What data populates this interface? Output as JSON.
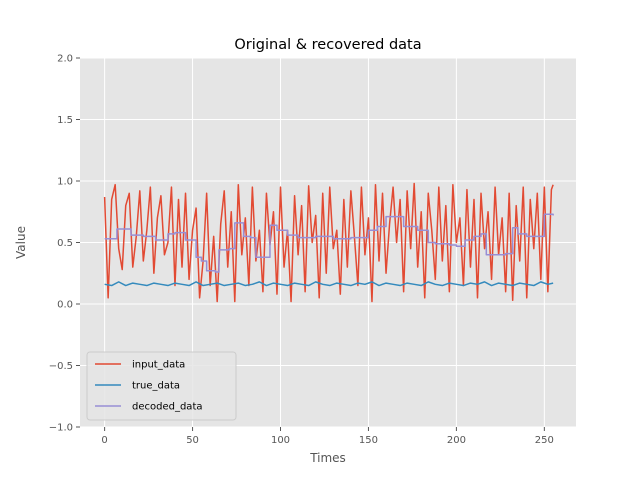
{
  "chart_data": {
    "type": "line",
    "title": "Original & recovered data",
    "xlabel": "Times",
    "ylabel": "Value",
    "xlim": [
      -14,
      268
    ],
    "ylim": [
      -1.0,
      2.0
    ],
    "xticks": [
      0,
      50,
      100,
      150,
      200,
      250
    ],
    "xtick_labels": [
      "0",
      "50",
      "100",
      "150",
      "200",
      "250"
    ],
    "yticks": [
      -1.0,
      -0.5,
      0.0,
      0.5,
      1.0,
      1.5,
      2.0
    ],
    "ytick_labels": [
      "−1.0",
      "−0.5",
      "0.0",
      "0.5",
      "1.0",
      "1.5",
      "2.0"
    ],
    "grid": true,
    "legend_position": "lower-left",
    "series": [
      {
        "name": "input_data",
        "color": "#E24A33",
        "x": [
          0,
          2,
          4,
          6,
          8,
          10,
          12,
          14,
          16,
          18,
          20,
          22,
          24,
          26,
          28,
          30,
          32,
          34,
          36,
          38,
          40,
          42,
          44,
          46,
          48,
          50,
          52,
          54,
          56,
          58,
          60,
          62,
          64,
          66,
          68,
          70,
          72,
          74,
          76,
          78,
          80,
          82,
          84,
          86,
          88,
          90,
          92,
          94,
          96,
          98,
          100,
          102,
          104,
          106,
          108,
          110,
          112,
          114,
          116,
          118,
          120,
          122,
          124,
          126,
          128,
          130,
          132,
          134,
          136,
          138,
          140,
          142,
          144,
          146,
          148,
          150,
          152,
          154,
          156,
          158,
          160,
          162,
          164,
          166,
          168,
          170,
          172,
          174,
          176,
          178,
          180,
          182,
          184,
          186,
          188,
          190,
          192,
          194,
          196,
          198,
          200,
          202,
          204,
          206,
          208,
          210,
          212,
          214,
          216,
          218,
          220,
          222,
          224,
          226,
          228,
          230,
          232,
          234,
          236,
          238,
          240,
          242,
          244,
          246,
          248,
          250,
          252,
          254,
          255
        ],
        "values": [
          0.87,
          0.05,
          0.85,
          0.97,
          0.45,
          0.28,
          0.8,
          0.9,
          0.3,
          0.55,
          0.92,
          0.35,
          0.6,
          0.95,
          0.25,
          0.7,
          0.88,
          0.4,
          0.5,
          0.95,
          0.15,
          0.85,
          0.3,
          0.9,
          0.2,
          0.6,
          0.78,
          0.05,
          0.35,
          0.9,
          0.15,
          0.55,
          0.02,
          0.65,
          0.92,
          0.3,
          0.75,
          0.02,
          0.97,
          0.4,
          0.7,
          0.15,
          0.95,
          0.35,
          0.6,
          0.1,
          0.9,
          0.48,
          0.75,
          0.08,
          0.95,
          0.3,
          0.6,
          0.02,
          0.88,
          0.4,
          0.8,
          0.1,
          0.96,
          0.5,
          0.72,
          0.05,
          0.9,
          0.25,
          0.95,
          0.45,
          0.6,
          0.08,
          0.85,
          0.3,
          0.92,
          0.55,
          0.15,
          0.95,
          0.4,
          0.7,
          0.02,
          0.97,
          0.35,
          0.9,
          0.25,
          0.65,
          0.95,
          0.5,
          0.85,
          0.1,
          0.92,
          0.45,
          0.98,
          0.3,
          0.75,
          0.05,
          0.9,
          0.6,
          0.2,
          0.95,
          0.35,
          0.8,
          0.1,
          0.97,
          0.5,
          0.7,
          0.15,
          0.93,
          0.3,
          0.85,
          0.05,
          0.9,
          0.45,
          0.75,
          0.2,
          0.95,
          0.4,
          0.7,
          0.1,
          0.9,
          0.03,
          0.8,
          0.35,
          0.95,
          0.05,
          0.85,
          0.45,
          0.9,
          0.2,
          0.95,
          0.1,
          0.93,
          0.97
        ]
      },
      {
        "name": "true_data",
        "color": "#348ABD",
        "x": [
          0,
          4,
          8,
          12,
          16,
          20,
          24,
          28,
          32,
          36,
          40,
          44,
          48,
          52,
          56,
          60,
          64,
          68,
          72,
          76,
          80,
          84,
          88,
          92,
          96,
          100,
          104,
          108,
          112,
          116,
          120,
          124,
          128,
          132,
          136,
          140,
          144,
          148,
          152,
          156,
          160,
          164,
          168,
          172,
          176,
          180,
          184,
          188,
          192,
          196,
          200,
          204,
          208,
          212,
          216,
          220,
          224,
          228,
          232,
          236,
          240,
          244,
          248,
          252,
          255
        ],
        "values": [
          0.16,
          0.15,
          0.18,
          0.15,
          0.17,
          0.16,
          0.15,
          0.17,
          0.16,
          0.15,
          0.17,
          0.16,
          0.15,
          0.18,
          0.15,
          0.16,
          0.17,
          0.15,
          0.16,
          0.17,
          0.15,
          0.16,
          0.18,
          0.15,
          0.17,
          0.16,
          0.15,
          0.17,
          0.16,
          0.15,
          0.18,
          0.16,
          0.15,
          0.17,
          0.16,
          0.15,
          0.17,
          0.16,
          0.18,
          0.15,
          0.17,
          0.16,
          0.15,
          0.17,
          0.16,
          0.15,
          0.18,
          0.16,
          0.15,
          0.17,
          0.16,
          0.15,
          0.17,
          0.16,
          0.18,
          0.15,
          0.17,
          0.16,
          0.15,
          0.17,
          0.16,
          0.15,
          0.18,
          0.16,
          0.17
        ]
      },
      {
        "name": "decoded_data",
        "color": "#988ED5",
        "step": true,
        "x": [
          0,
          7,
          15,
          22,
          29,
          36,
          40,
          46,
          52,
          55,
          58,
          63,
          65,
          71,
          74,
          79,
          83,
          86,
          88,
          94,
          98,
          104,
          110,
          120,
          130,
          140,
          150,
          155,
          160,
          170,
          178,
          184,
          188,
          196,
          200,
          205,
          210,
          214,
          217,
          222,
          228,
          232,
          235,
          240,
          245,
          250,
          255
        ],
        "values": [
          0.53,
          0.61,
          0.56,
          0.55,
          0.52,
          0.57,
          0.58,
          0.52,
          0.38,
          0.35,
          0.27,
          0.26,
          0.44,
          0.45,
          0.66,
          0.55,
          0.54,
          0.38,
          0.38,
          0.64,
          0.6,
          0.56,
          0.54,
          0.55,
          0.53,
          0.54,
          0.6,
          0.63,
          0.71,
          0.63,
          0.6,
          0.5,
          0.49,
          0.48,
          0.47,
          0.52,
          0.55,
          0.57,
          0.4,
          0.4,
          0.41,
          0.62,
          0.57,
          0.55,
          0.55,
          0.73,
          0.72
        ]
      }
    ]
  }
}
